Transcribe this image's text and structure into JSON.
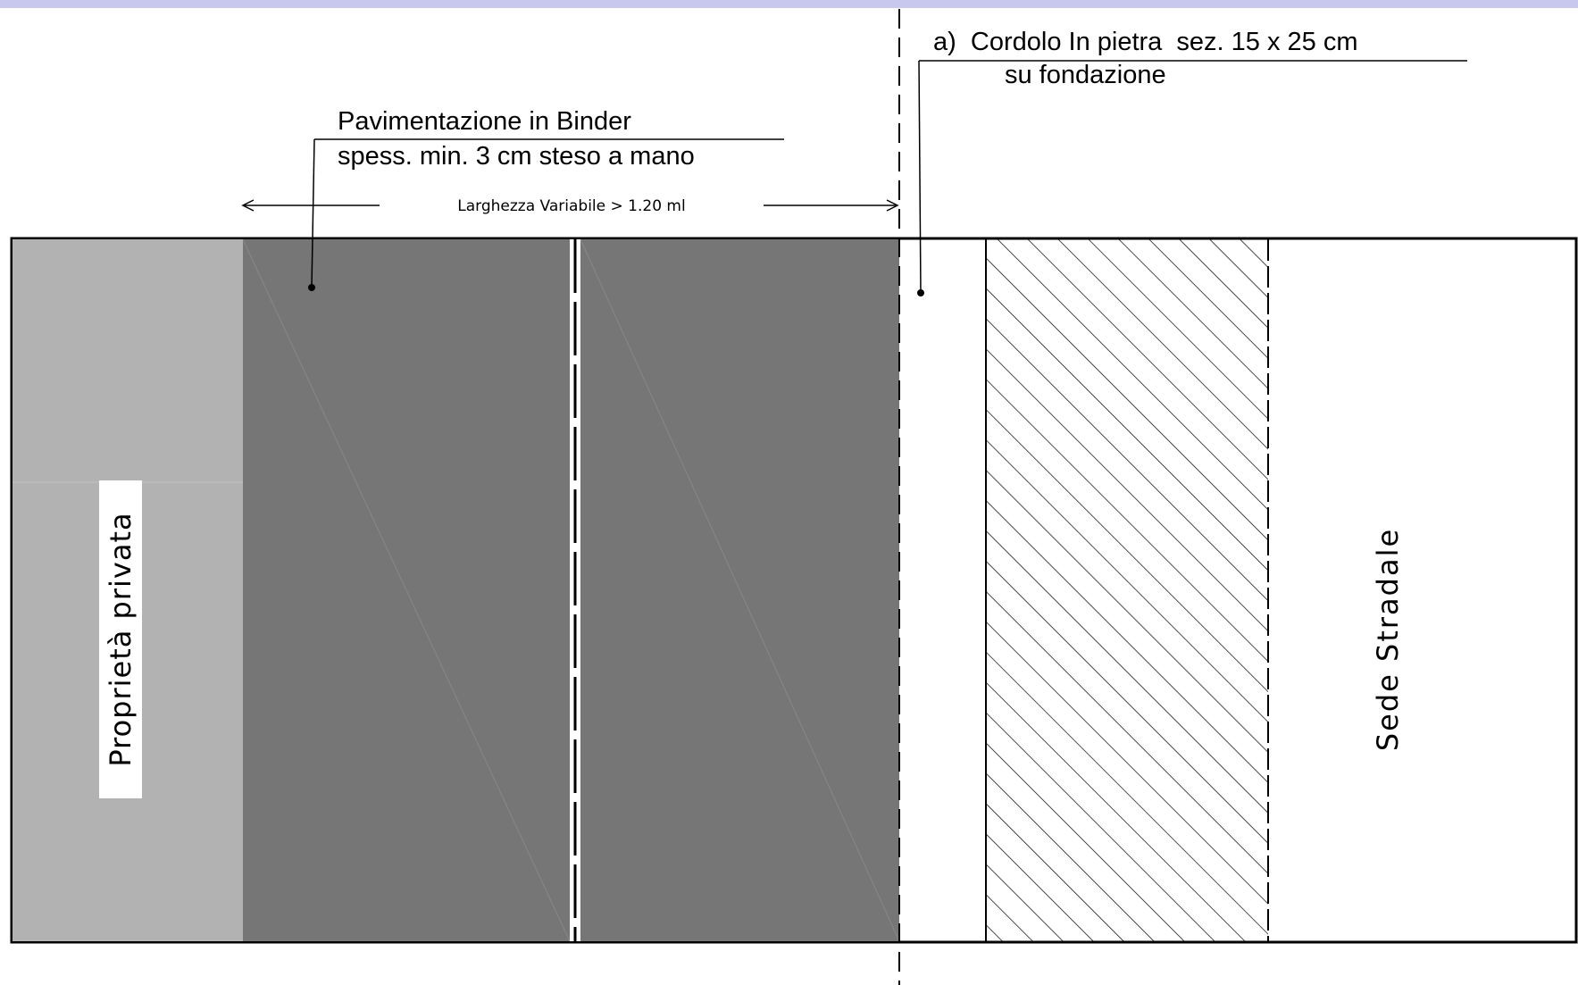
{
  "labels": {
    "cordolo_line1": "a)  Cordolo In pietra  sez. 15 x 25 cm",
    "cordolo_line2": "su fondazione",
    "binder_line1": "Pavimentazione in Binder",
    "binder_line2": "spess. min. 3 cm steso a mano",
    "width_dimension": "Larghezza Variabile > 1.20 ml",
    "private_property": "Proprietà privata",
    "roadway": "Sede Stradale"
  },
  "colors": {
    "header_bar": "#c8c8ef",
    "private_area": "#b2b2b2",
    "binder_area": "#767676",
    "outline": "#000000"
  }
}
